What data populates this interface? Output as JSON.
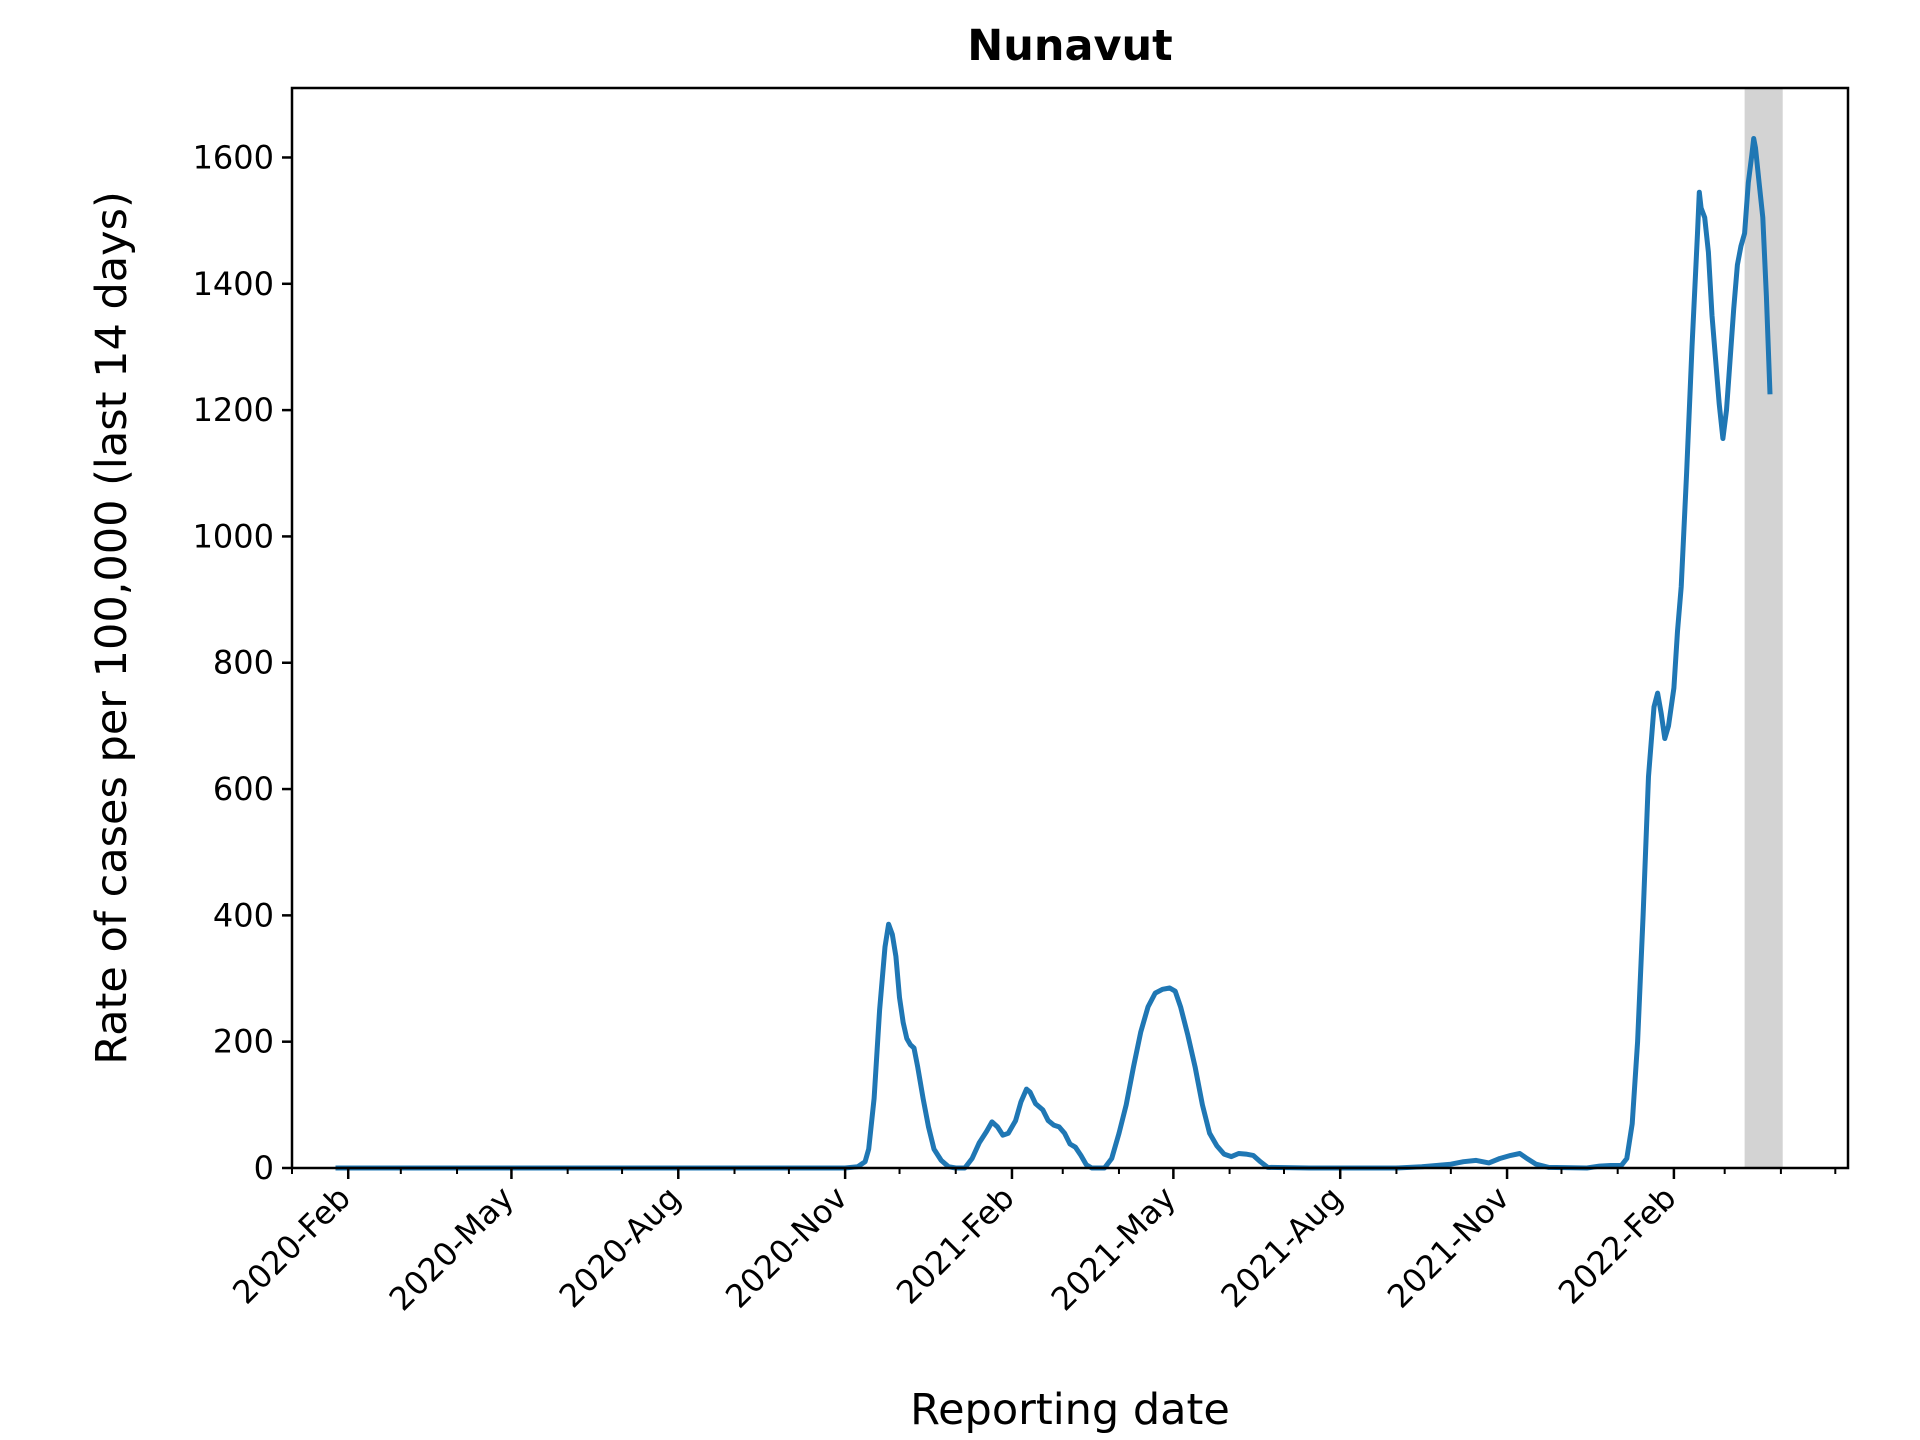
{
  "chart_data": {
    "type": "line",
    "title": "Nunavut",
    "xlabel": "Reporting date",
    "ylabel": "Rate of cases per 100,000 (last 14 days)",
    "ylim": [
      0,
      1710
    ],
    "xlim": [
      "2020-01-01",
      "2022-05-08"
    ],
    "y_ticks": [
      0,
      200,
      400,
      600,
      800,
      1000,
      1200,
      1400,
      1600
    ],
    "y_tick_labels": [
      "0",
      "200",
      "400",
      "600",
      "800",
      "1000",
      "1200",
      "1400",
      "1600"
    ],
    "x_ticks": [
      "2020-02-01",
      "2020-05-01",
      "2020-08-01",
      "2020-11-01",
      "2021-02-01",
      "2021-05-01",
      "2021-08-01",
      "2021-11-01",
      "2022-02-01"
    ],
    "x_tick_labels": [
      "2020-Feb",
      "2020-May",
      "2020-Aug",
      "2020-Nov",
      "2021-Feb",
      "2021-May",
      "2021-Aug",
      "2021-Nov",
      "2022-Feb"
    ],
    "x_minor_ticks": [
      "2020-01-01",
      "2020-03-01",
      "2020-04-01",
      "2020-06-01",
      "2020-07-01",
      "2020-09-01",
      "2020-10-01",
      "2020-12-01",
      "2021-01-01",
      "2021-03-01",
      "2021-04-01",
      "2021-06-01",
      "2021-07-01",
      "2021-09-01",
      "2021-10-01",
      "2021-12-01",
      "2022-01-01",
      "2022-03-01",
      "2022-04-01",
      "2022-05-01"
    ],
    "grid": false,
    "shaded_region": {
      "start": "2022-03-12",
      "end": "2022-04-02",
      "color": "#d3d3d3"
    },
    "series": [
      {
        "color": "#1f77b4",
        "points": [
          [
            "2020-01-25",
            0
          ],
          [
            "2020-10-01",
            0
          ],
          [
            "2020-11-01",
            0
          ],
          [
            "2020-11-08",
            2
          ],
          [
            "2020-11-12",
            10
          ],
          [
            "2020-11-14",
            30
          ],
          [
            "2020-11-17",
            110
          ],
          [
            "2020-11-20",
            250
          ],
          [
            "2020-11-23",
            350
          ],
          [
            "2020-11-25",
            386
          ],
          [
            "2020-11-27",
            370
          ],
          [
            "2020-11-29",
            335
          ],
          [
            "2020-12-01",
            270
          ],
          [
            "2020-12-03",
            230
          ],
          [
            "2020-12-05",
            205
          ],
          [
            "2020-12-07",
            195
          ],
          [
            "2020-12-09",
            190
          ],
          [
            "2020-12-11",
            160
          ],
          [
            "2020-12-14",
            110
          ],
          [
            "2020-12-17",
            65
          ],
          [
            "2020-12-20",
            30
          ],
          [
            "2020-12-24",
            12
          ],
          [
            "2020-12-28",
            2
          ],
          [
            "2021-01-01",
            0
          ],
          [
            "2021-01-06",
            0
          ],
          [
            "2021-01-10",
            15
          ],
          [
            "2021-01-14",
            40
          ],
          [
            "2021-01-18",
            58
          ],
          [
            "2021-01-21",
            73
          ],
          [
            "2021-01-24",
            65
          ],
          [
            "2021-01-27",
            52
          ],
          [
            "2021-01-30",
            55
          ],
          [
            "2021-02-03",
            75
          ],
          [
            "2021-02-06",
            105
          ],
          [
            "2021-02-09",
            125
          ],
          [
            "2021-02-11",
            120
          ],
          [
            "2021-02-14",
            102
          ],
          [
            "2021-02-18",
            92
          ],
          [
            "2021-02-21",
            75
          ],
          [
            "2021-02-24",
            68
          ],
          [
            "2021-02-27",
            65
          ],
          [
            "2021-03-02",
            55
          ],
          [
            "2021-03-05",
            38
          ],
          [
            "2021-03-08",
            33
          ],
          [
            "2021-03-11",
            20
          ],
          [
            "2021-03-14",
            5
          ],
          [
            "2021-03-17",
            0
          ],
          [
            "2021-03-24",
            0
          ],
          [
            "2021-03-28",
            15
          ],
          [
            "2021-04-01",
            55
          ],
          [
            "2021-04-05",
            100
          ],
          [
            "2021-04-09",
            160
          ],
          [
            "2021-04-13",
            215
          ],
          [
            "2021-04-17",
            255
          ],
          [
            "2021-04-21",
            277
          ],
          [
            "2021-04-25",
            283
          ],
          [
            "2021-04-29",
            285
          ],
          [
            "2021-05-02",
            280
          ],
          [
            "2021-05-05",
            255
          ],
          [
            "2021-05-09",
            210
          ],
          [
            "2021-05-13",
            160
          ],
          [
            "2021-05-17",
            100
          ],
          [
            "2021-05-21",
            55
          ],
          [
            "2021-05-25",
            35
          ],
          [
            "2021-05-29",
            22
          ],
          [
            "2021-06-02",
            18
          ],
          [
            "2021-06-06",
            23
          ],
          [
            "2021-06-10",
            22
          ],
          [
            "2021-06-14",
            20
          ],
          [
            "2021-06-18",
            10
          ],
          [
            "2021-06-22",
            1
          ],
          [
            "2021-07-15",
            0
          ],
          [
            "2021-09-01",
            0
          ],
          [
            "2021-09-15",
            2
          ],
          [
            "2021-10-01",
            6
          ],
          [
            "2021-10-08",
            10
          ],
          [
            "2021-10-15",
            12
          ],
          [
            "2021-10-22",
            8
          ],
          [
            "2021-10-28",
            15
          ],
          [
            "2021-11-03",
            20
          ],
          [
            "2021-11-08",
            23
          ],
          [
            "2021-11-12",
            15
          ],
          [
            "2021-11-17",
            6
          ],
          [
            "2021-11-24",
            1
          ],
          [
            "2021-12-15",
            0
          ],
          [
            "2021-12-22",
            3
          ],
          [
            "2021-12-28",
            4
          ],
          [
            "2022-01-03",
            4
          ],
          [
            "2022-01-06",
            15
          ],
          [
            "2022-01-09",
            70
          ],
          [
            "2022-01-12",
            200
          ],
          [
            "2022-01-15",
            400
          ],
          [
            "2022-01-18",
            620
          ],
          [
            "2022-01-21",
            730
          ],
          [
            "2022-01-23",
            752
          ],
          [
            "2022-01-25",
            720
          ],
          [
            "2022-01-27",
            680
          ],
          [
            "2022-01-29",
            700
          ],
          [
            "2022-02-01",
            760
          ],
          [
            "2022-02-03",
            850
          ],
          [
            "2022-02-05",
            920
          ],
          [
            "2022-02-08",
            1100
          ],
          [
            "2022-02-11",
            1300
          ],
          [
            "2022-02-14",
            1480
          ],
          [
            "2022-02-15",
            1545
          ],
          [
            "2022-02-16",
            1520
          ],
          [
            "2022-02-18",
            1505
          ],
          [
            "2022-02-20",
            1450
          ],
          [
            "2022-02-22",
            1350
          ],
          [
            "2022-02-24",
            1280
          ],
          [
            "2022-02-26",
            1210
          ],
          [
            "2022-02-28",
            1155
          ],
          [
            "2022-03-02",
            1200
          ],
          [
            "2022-03-04",
            1280
          ],
          [
            "2022-03-06",
            1360
          ],
          [
            "2022-03-08",
            1430
          ],
          [
            "2022-03-10",
            1460
          ],
          [
            "2022-03-12",
            1480
          ],
          [
            "2022-03-14",
            1560
          ],
          [
            "2022-03-16",
            1605
          ],
          [
            "2022-03-17",
            1630
          ],
          [
            "2022-03-18",
            1615
          ],
          [
            "2022-03-20",
            1560
          ],
          [
            "2022-03-22",
            1505
          ],
          [
            "2022-03-24",
            1380
          ],
          [
            "2022-03-26",
            1225
          ]
        ]
      }
    ]
  }
}
